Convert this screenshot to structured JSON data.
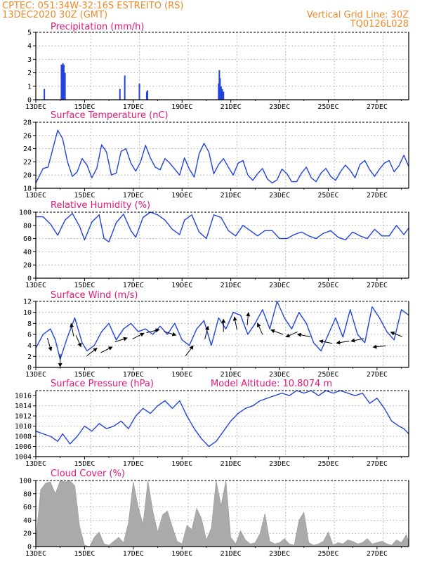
{
  "header": {
    "line1_left": "CPTEC:   051:34W-32:16S   ESTREITO (RS)",
    "line2_left": "13DEC2020 30Z (GMT)",
    "line1_right": "Vertical Grid Line: 30Z",
    "line2_right": "TQ0126L028"
  },
  "colors": {
    "header": "#ee8a2a",
    "title": "#e0187a",
    "series": "#2244dd",
    "cloud": "#aaaaaa",
    "arrow": "#000000"
  },
  "x_axis": {
    "ticks": [
      {
        "label": "13DEC",
        "day": 13
      },
      {
        "label": "15DEC",
        "day": 15
      },
      {
        "label": "17DEC",
        "day": 17
      },
      {
        "label": "19DEC",
        "day": 19
      },
      {
        "label": "21DEC",
        "day": 21
      },
      {
        "label": "23DEC",
        "day": 23
      },
      {
        "label": "25DEC",
        "day": 25
      },
      {
        "label": "27DEC",
        "day": 27
      }
    ],
    "range_days": [
      13,
      28.3
    ]
  },
  "chart_data": [
    {
      "id": "precip",
      "type": "bar",
      "title": "Precipitation (mm/h)",
      "ylim": [
        0,
        5
      ],
      "yticks": [
        "0",
        "1",
        "2",
        "3",
        "4",
        "5"
      ],
      "grid": true,
      "x_days": [
        13.35,
        14.05,
        14.08,
        14.11,
        14.15,
        14.2,
        16.45,
        16.65,
        17.25,
        17.55,
        17.58,
        20.5,
        20.53,
        20.56,
        20.6,
        20.65,
        20.7
      ],
      "values": [
        0.8,
        2.6,
        2.6,
        2.7,
        2.6,
        2.0,
        0.8,
        1.8,
        1.2,
        0.6,
        0.7,
        1.2,
        2.2,
        1.6,
        1.0,
        0.8,
        0.6
      ]
    },
    {
      "id": "temp",
      "type": "line",
      "title": "Surface Temperature (nC)",
      "ylim": [
        18,
        28
      ],
      "yticks": [
        "18",
        "20",
        "22",
        "24",
        "26",
        "28"
      ],
      "grid": true,
      "x": [
        13.0,
        13.3,
        13.5,
        13.7,
        13.9,
        14.1,
        14.3,
        14.5,
        14.7,
        14.9,
        15.1,
        15.3,
        15.5,
        15.7,
        15.9,
        16.1,
        16.3,
        16.5,
        16.7,
        16.9,
        17.1,
        17.3,
        17.5,
        17.7,
        17.9,
        18.1,
        18.3,
        18.5,
        18.7,
        18.9,
        19.1,
        19.3,
        19.5,
        19.7,
        19.9,
        20.1,
        20.3,
        20.5,
        20.7,
        20.9,
        21.1,
        21.3,
        21.5,
        21.7,
        21.9,
        22.1,
        22.3,
        22.5,
        22.7,
        22.9,
        23.1,
        23.3,
        23.5,
        23.7,
        23.9,
        24.1,
        24.3,
        24.5,
        24.7,
        24.9,
        25.1,
        25.3,
        25.5,
        25.7,
        25.9,
        26.1,
        26.3,
        26.5,
        26.7,
        26.9,
        27.1,
        27.3,
        27.5,
        27.7,
        27.9,
        28.1,
        28.3
      ],
      "values": [
        18.8,
        21.0,
        21.2,
        24.0,
        26.8,
        25.5,
        22.0,
        19.8,
        20.5,
        22.5,
        21.5,
        19.6,
        21.0,
        24.6,
        23.5,
        20.0,
        20.3,
        23.6,
        24.0,
        21.8,
        20.6,
        22.0,
        24.5,
        22.6,
        21.2,
        20.8,
        22.5,
        21.8,
        20.9,
        20.0,
        22.6,
        20.9,
        19.7,
        23.2,
        24.8,
        23.5,
        20.2,
        21.6,
        22.5,
        21.2,
        20.0,
        21.8,
        22.2,
        20.0,
        19.2,
        20.2,
        21.0,
        19.4,
        18.8,
        19.3,
        20.9,
        20.2,
        19.0,
        19.0,
        20.3,
        21.2,
        19.6,
        19.0,
        20.3,
        21.0,
        19.8,
        19.2,
        20.5,
        21.5,
        20.7,
        19.6,
        21.6,
        22.2,
        20.8,
        19.8,
        20.9,
        21.8,
        22.2,
        20.5,
        21.4,
        23.0,
        21.3
      ]
    },
    {
      "id": "rh",
      "type": "line",
      "title": "Relative Humidity (%)",
      "ylim": [
        0,
        100
      ],
      "yticks": [
        "0",
        "20",
        "40",
        "60",
        "80",
        "100"
      ],
      "grid": true,
      "x": [
        13.0,
        13.3,
        13.6,
        13.9,
        14.2,
        14.5,
        14.8,
        15.0,
        15.3,
        15.6,
        15.8,
        16.0,
        16.3,
        16.6,
        16.9,
        17.1,
        17.4,
        17.7,
        18.0,
        18.3,
        18.6,
        18.9,
        19.1,
        19.4,
        19.7,
        20.0,
        20.3,
        20.6,
        20.9,
        21.2,
        21.5,
        21.8,
        22.1,
        22.4,
        22.7,
        23.0,
        23.3,
        23.6,
        23.9,
        24.2,
        24.5,
        24.8,
        25.1,
        25.4,
        25.7,
        26.0,
        26.3,
        26.6,
        26.9,
        27.2,
        27.5,
        27.8,
        28.1,
        28.3
      ],
      "values": [
        93,
        93,
        82,
        65,
        88,
        98,
        78,
        58,
        85,
        96,
        60,
        55,
        84,
        97,
        72,
        62,
        92,
        100,
        96,
        88,
        74,
        66,
        88,
        96,
        70,
        60,
        96,
        92,
        72,
        64,
        80,
        72,
        64,
        72,
        72,
        60,
        60,
        66,
        70,
        64,
        60,
        68,
        72,
        62,
        58,
        70,
        64,
        60,
        74,
        64,
        64,
        80,
        66,
        76
      ]
    },
    {
      "id": "wind",
      "type": "line",
      "title": "Surface Wind (m/s)",
      "ylim": [
        0,
        12
      ],
      "yticks": [
        "0",
        "2",
        "4",
        "6",
        "8",
        "10",
        "12"
      ],
      "grid": true,
      "x": [
        13.0,
        13.3,
        13.6,
        13.8,
        14.0,
        14.3,
        14.6,
        14.9,
        15.1,
        15.4,
        15.7,
        16.0,
        16.3,
        16.6,
        16.9,
        17.2,
        17.5,
        17.8,
        18.1,
        18.4,
        18.7,
        19.0,
        19.3,
        19.6,
        19.9,
        20.2,
        20.5,
        20.8,
        21.1,
        21.4,
        21.7,
        22.0,
        22.3,
        22.6,
        22.9,
        23.2,
        23.5,
        23.8,
        24.1,
        24.4,
        24.7,
        25.0,
        25.3,
        25.6,
        25.9,
        26.2,
        26.5,
        26.8,
        27.1,
        27.4,
        27.7,
        28.0,
        28.3
      ],
      "values": [
        3.5,
        6.0,
        7.0,
        5.0,
        1.5,
        5.5,
        9.0,
        4.5,
        3.0,
        4.0,
        6.5,
        8.0,
        5.0,
        7.0,
        8.0,
        6.5,
        7.0,
        6.0,
        7.5,
        6.0,
        8.0,
        5.0,
        4.0,
        7.0,
        8.5,
        4.0,
        9.0,
        7.0,
        10.0,
        9.5,
        6.0,
        8.0,
        10.5,
        7.0,
        12.0,
        9.0,
        7.0,
        10.0,
        8.0,
        4.5,
        3.0,
        6.0,
        9.0,
        5.5,
        10.5,
        6.0,
        4.5,
        11.0,
        9.0,
        6.5,
        5.0,
        10.5,
        9.5
      ]
    },
    {
      "id": "pressure",
      "type": "line",
      "title": "Surface Pressure (hPa)",
      "annotation": "Model Altitude: 10.8074  m",
      "ylim": [
        1004,
        1017
      ],
      "yticks": [
        "1004",
        "1006",
        "1008",
        "1010",
        "1012",
        "1014",
        "1016"
      ],
      "grid": true,
      "x": [
        13.0,
        13.3,
        13.6,
        13.9,
        14.1,
        14.4,
        14.7,
        15.0,
        15.3,
        15.6,
        15.9,
        16.2,
        16.5,
        16.8,
        17.1,
        17.4,
        17.7,
        18.0,
        18.3,
        18.6,
        18.9,
        19.2,
        19.5,
        19.8,
        20.1,
        20.4,
        20.7,
        21.0,
        21.3,
        21.6,
        21.9,
        22.2,
        22.5,
        22.8,
        23.1,
        23.4,
        23.7,
        24.0,
        24.3,
        24.6,
        24.9,
        25.2,
        25.5,
        25.8,
        26.1,
        26.4,
        26.7,
        27.0,
        27.3,
        27.6,
        27.9,
        28.1,
        28.3
      ],
      "values": [
        1009.0,
        1008.5,
        1008.0,
        1007.0,
        1008.5,
        1006.5,
        1008.0,
        1010.0,
        1009.0,
        1010.5,
        1009.5,
        1010.0,
        1011.0,
        1009.5,
        1012.0,
        1013.5,
        1012.5,
        1014.0,
        1015.0,
        1013.5,
        1015.0,
        1012.0,
        1009.5,
        1007.5,
        1006.0,
        1007.0,
        1009.0,
        1011.0,
        1012.5,
        1013.5,
        1014.0,
        1015.0,
        1015.5,
        1016.0,
        1016.5,
        1016.0,
        1017.0,
        1016.5,
        1017.0,
        1016.0,
        1017.0,
        1016.5,
        1017.0,
        1016.5,
        1016.0,
        1016.5,
        1014.5,
        1015.5,
        1013.5,
        1011.0,
        1010.0,
        1009.5,
        1008.5
      ]
    },
    {
      "id": "cloud",
      "type": "area",
      "title": "Cloud Cover (%)",
      "ylim": [
        0,
        100
      ],
      "yticks": [
        "0",
        "20",
        "40",
        "60",
        "80",
        "100"
      ],
      "grid": true,
      "x": [
        13.0,
        13.2,
        13.4,
        13.6,
        13.8,
        14.0,
        14.2,
        14.4,
        14.6,
        14.8,
        15.0,
        15.2,
        15.4,
        15.6,
        15.8,
        16.0,
        16.2,
        16.4,
        16.6,
        16.8,
        17.0,
        17.2,
        17.4,
        17.6,
        17.8,
        18.0,
        18.2,
        18.4,
        18.6,
        18.8,
        19.0,
        19.2,
        19.4,
        19.6,
        19.8,
        20.0,
        20.2,
        20.4,
        20.6,
        20.8,
        21.0,
        21.2,
        21.4,
        21.6,
        21.8,
        22.0,
        22.2,
        22.4,
        22.6,
        22.8,
        23.0,
        23.2,
        23.4,
        23.6,
        23.8,
        24.0,
        24.2,
        24.4,
        24.6,
        24.8,
        25.0,
        25.2,
        25.4,
        25.6,
        25.8,
        26.0,
        26.2,
        26.4,
        26.6,
        26.8,
        27.0,
        27.2,
        27.4,
        27.6,
        27.8,
        28.0,
        28.2,
        28.3
      ],
      "values": [
        8,
        86,
        96,
        98,
        80,
        100,
        98,
        100,
        92,
        30,
        2,
        0,
        14,
        22,
        4,
        2,
        8,
        14,
        6,
        36,
        98,
        60,
        34,
        100,
        54,
        22,
        48,
        54,
        30,
        8,
        4,
        32,
        26,
        58,
        42,
        10,
        28,
        100,
        62,
        100,
        14,
        4,
        24,
        10,
        4,
        6,
        20,
        50,
        8,
        4,
        6,
        12,
        4,
        2,
        40,
        52,
        6,
        2,
        4,
        8,
        22,
        2,
        6,
        4,
        10,
        8,
        4,
        6,
        12,
        4,
        6,
        8,
        4,
        2,
        10,
        6,
        18,
        8
      ]
    }
  ],
  "wind_vectors": [
    {
      "day": 13.55,
      "speed": 4.2,
      "u": 0.3,
      "v": -1.0
    },
    {
      "day": 14.0,
      "speed": 1.3,
      "u": 0.0,
      "v": -1.0
    },
    {
      "day": 14.5,
      "speed": 6.8,
      "u": -0.2,
      "v": 1.0
    },
    {
      "day": 14.75,
      "speed": 4.8,
      "u": 0.4,
      "v": -0.9
    },
    {
      "day": 15.3,
      "speed": 2.8,
      "u": 0.8,
      "v": 0.6
    },
    {
      "day": 15.9,
      "speed": 3.2,
      "u": 0.9,
      "v": 0.45
    },
    {
      "day": 16.5,
      "speed": 5.0,
      "u": 0.95,
      "v": 0.3
    },
    {
      "day": 17.2,
      "speed": 5.7,
      "u": 0.9,
      "v": 0.45
    },
    {
      "day": 17.8,
      "speed": 6.6,
      "u": 1.0,
      "v": 0.25
    },
    {
      "day": 18.5,
      "speed": 6.2,
      "u": 0.95,
      "v": -0.3
    },
    {
      "day": 19.3,
      "speed": 3.0,
      "u": 0.6,
      "v": 0.8
    },
    {
      "day": 20.0,
      "speed": 6.3,
      "u": 0.25,
      "v": 1.0
    },
    {
      "day": 20.7,
      "speed": 7.6,
      "u": 0.0,
      "v": 1.0
    },
    {
      "day": 21.2,
      "speed": 8.0,
      "u": -0.2,
      "v": 1.0
    },
    {
      "day": 21.7,
      "speed": 8.8,
      "u": 0.1,
      "v": 1.0
    },
    {
      "day": 22.2,
      "speed": 7.0,
      "u": -0.4,
      "v": 0.9
    },
    {
      "day": 22.9,
      "speed": 6.4,
      "u": -0.95,
      "v": 0.35
    },
    {
      "day": 23.5,
      "speed": 6.0,
      "u": -0.9,
      "v": -0.4
    },
    {
      "day": 24.0,
      "speed": 5.8,
      "u": -1.0,
      "v": 0.2
    },
    {
      "day": 24.9,
      "speed": 4.6,
      "u": -1.0,
      "v": 0.2
    },
    {
      "day": 25.6,
      "speed": 4.6,
      "u": -1.0,
      "v": -0.15
    },
    {
      "day": 26.2,
      "speed": 5.0,
      "u": -1.0,
      "v": -0.2
    },
    {
      "day": 27.1,
      "speed": 3.8,
      "u": -1.0,
      "v": -0.1
    },
    {
      "day": 27.8,
      "speed": 6.0,
      "u": -0.9,
      "v": 0.35
    }
  ]
}
